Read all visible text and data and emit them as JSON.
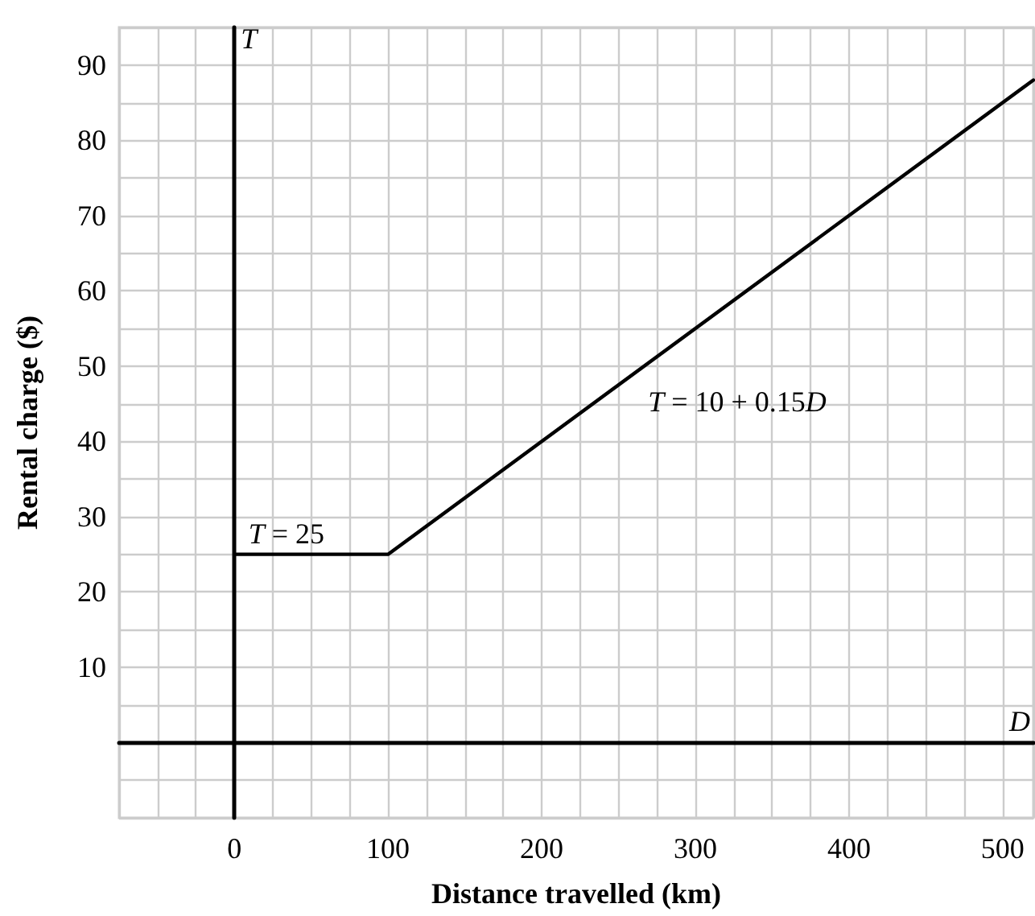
{
  "chart_data": {
    "type": "line",
    "xlabel": "Distance travelled (km)",
    "ylabel": "Rental charge ($)",
    "x": [
      0,
      100,
      520
    ],
    "series": [
      {
        "color": "#000000",
        "values": [
          25,
          25,
          88
        ]
      }
    ],
    "xlim": [
      -75,
      520
    ],
    "xticks": [
      0,
      100,
      200,
      300,
      400,
      500
    ],
    "ylim": [
      -10,
      95
    ],
    "yticks": [
      10,
      20,
      30,
      40,
      50,
      60,
      70,
      80,
      90
    ],
    "grid": true,
    "marker": "none",
    "line_style": "solid",
    "annotations": [
      "T",
      "D",
      {
        "text": "T = 25",
        "x": 5,
        "y": 25
      },
      {
        "text": "T = 10 + 0.15D",
        "x": 265,
        "y": 49.75
      }
    ]
  }
}
